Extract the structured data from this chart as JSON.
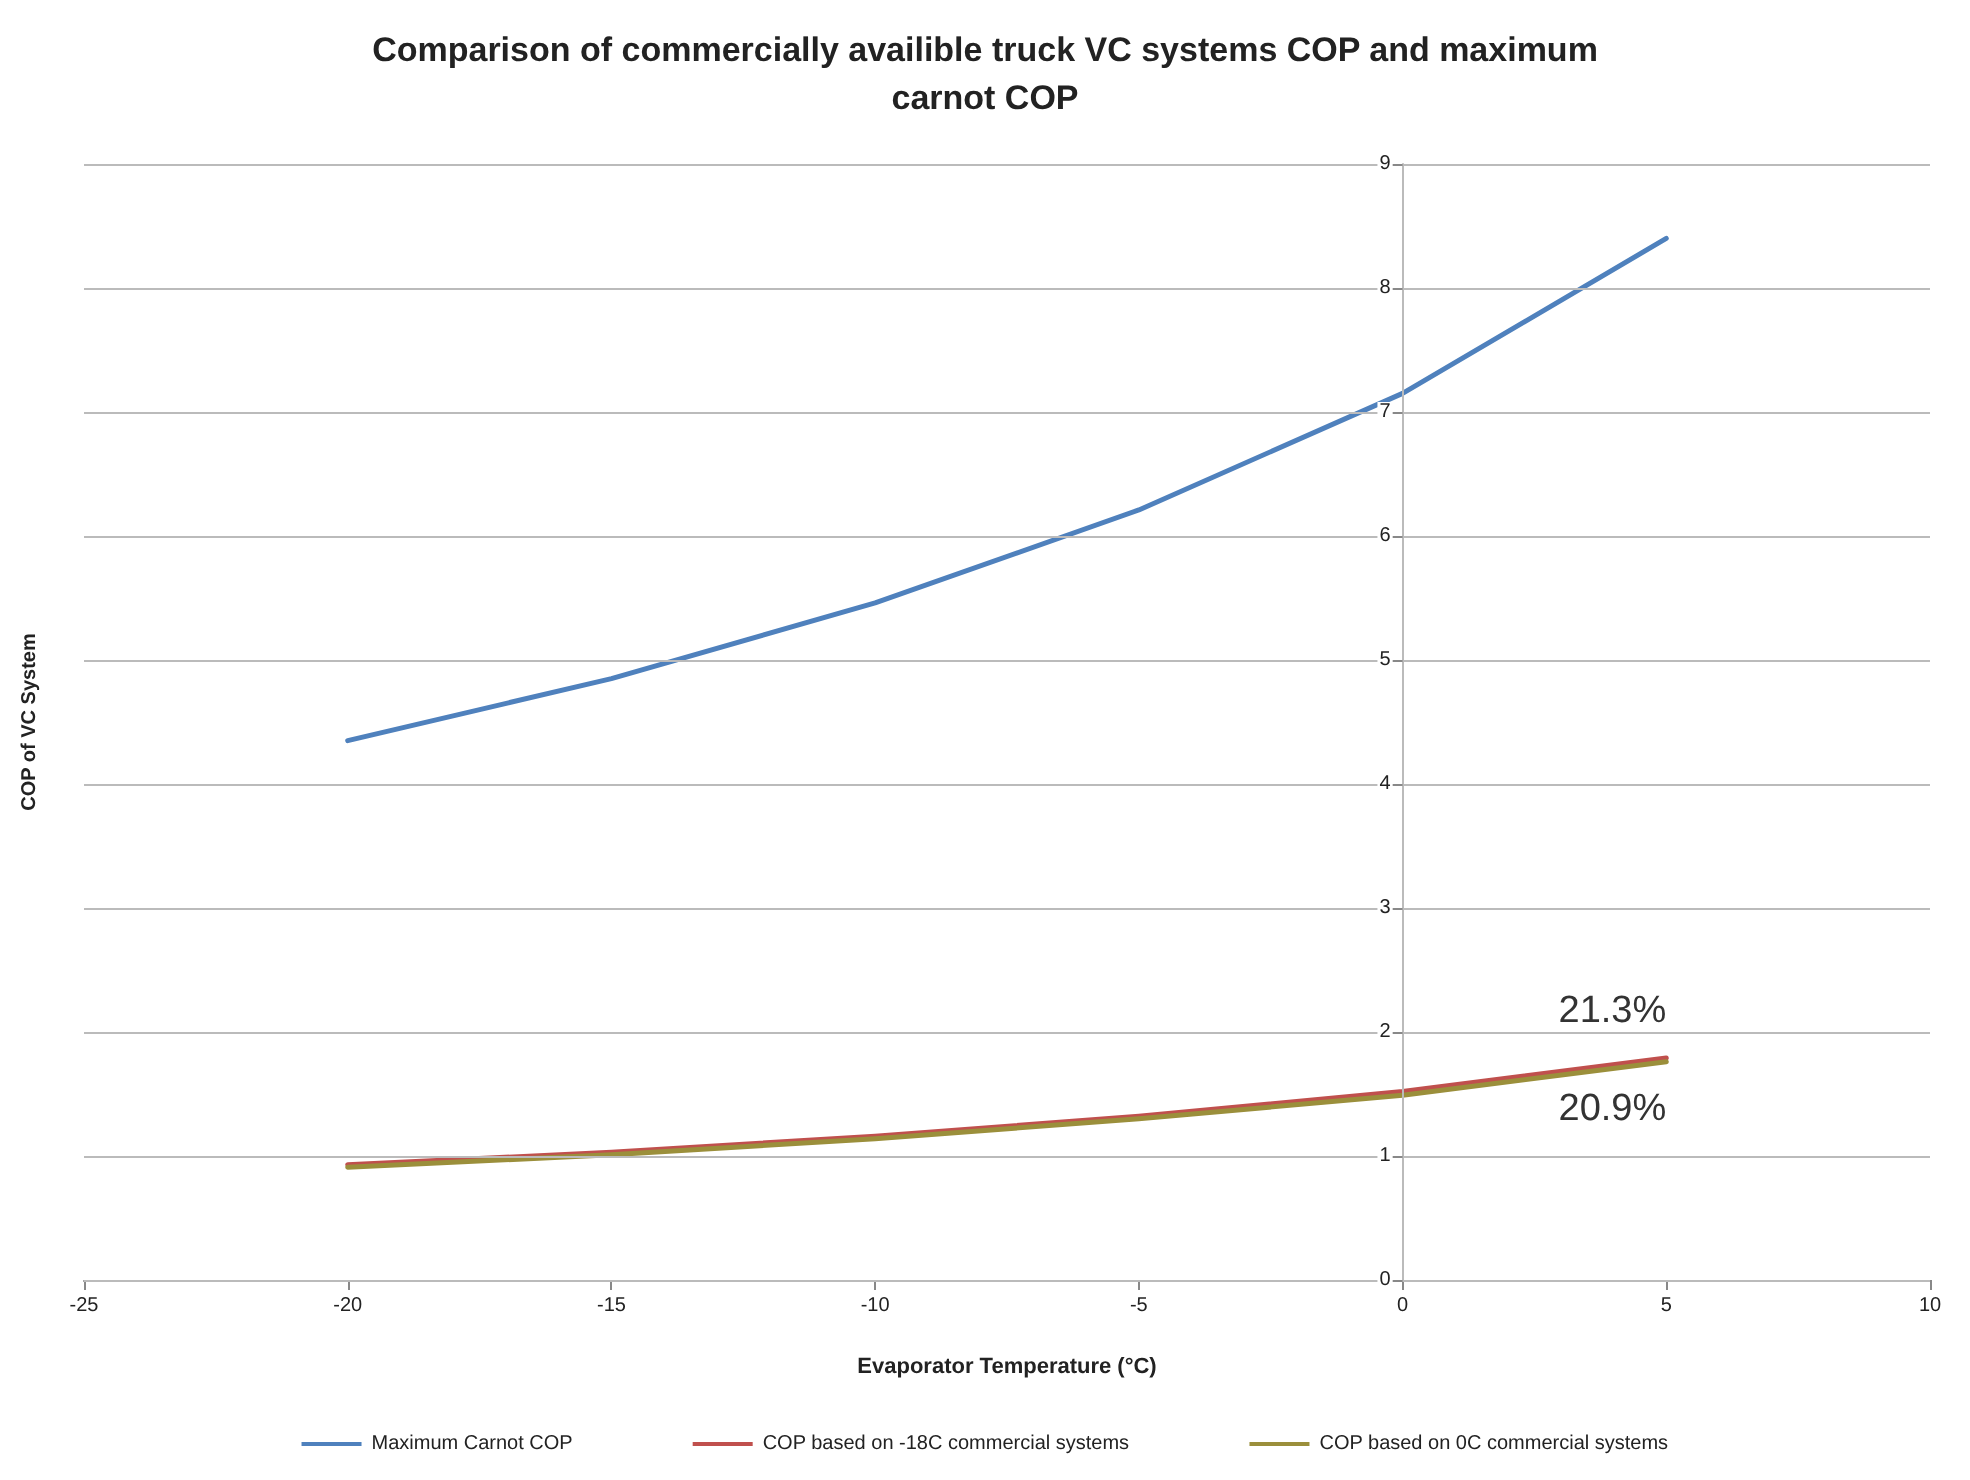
{
  "chart_data": {
    "type": "line",
    "title": "Comparison of commercially availible truck VC systems COP and maximum\ncarnot COP",
    "xlabel": "Evaporator Temperature (°C)",
    "ylabel": "COP of VC System",
    "x": [
      -20,
      -15,
      -10,
      -5,
      0,
      5
    ],
    "series": [
      {
        "name": "Maximum Carnot COP",
        "color": "#4f81bd",
        "values": [
          4.35,
          4.85,
          5.46,
          6.21,
          7.15,
          8.4
        ]
      },
      {
        "name": "COP based on -18C commercial systems",
        "color": "#c0504d",
        "values": [
          0.93,
          1.03,
          1.16,
          1.32,
          1.52,
          1.79
        ]
      },
      {
        "name": "COP based on 0C commercial systems",
        "color": "#9b8f3b",
        "values": [
          0.91,
          1.01,
          1.14,
          1.3,
          1.49,
          1.76
        ]
      }
    ],
    "annotations": [
      {
        "text": "21.3%",
        "x": 5,
        "y": 1.79
      },
      {
        "text": "20.9%",
        "x": 5,
        "y": 1.76
      }
    ],
    "xlim": [
      -25,
      10
    ],
    "xticks": [
      -25,
      -20,
      -15,
      -10,
      -5,
      0,
      5,
      10
    ],
    "ylim": [
      0,
      9
    ],
    "yticks": [
      0,
      1,
      2,
      3,
      4,
      5,
      6,
      7,
      8,
      9
    ],
    "grid": "y",
    "legend": "bottom",
    "marker": "none",
    "line_style": "solid"
  }
}
